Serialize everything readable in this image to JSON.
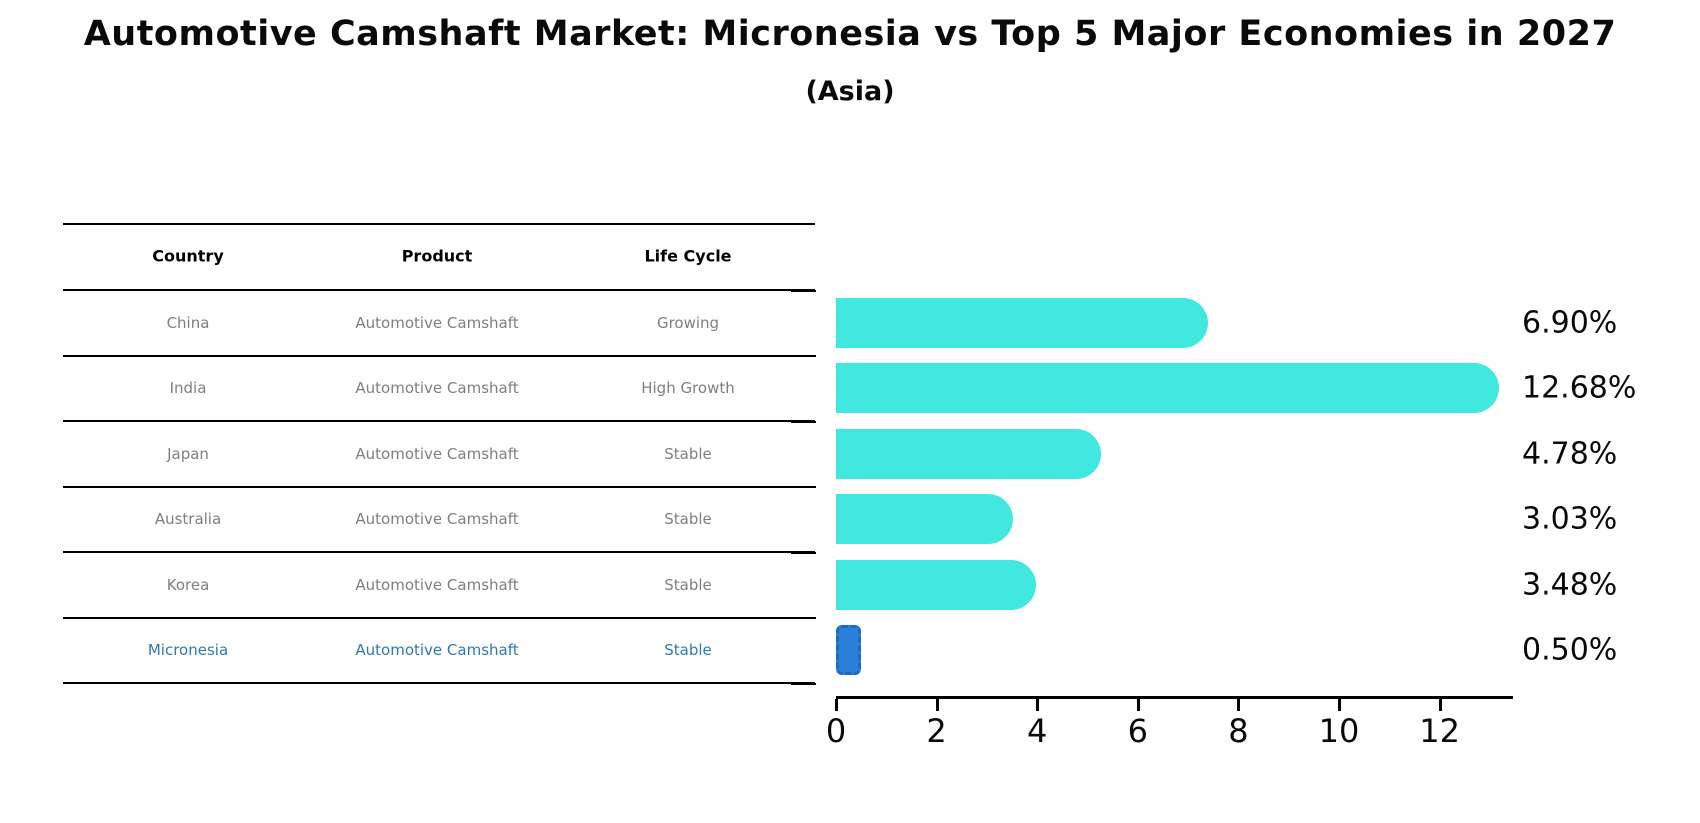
{
  "title": "Automotive Camshaft Market: Micronesia vs Top 5 Major Economies in 2027",
  "subtitle": "(Asia)",
  "table": {
    "headers": [
      "Country",
      "Product",
      "Life Cycle"
    ],
    "rows": [
      {
        "country": "China",
        "product": "Automotive Camshaft",
        "life_cycle": "Growing",
        "highlight": false
      },
      {
        "country": "India",
        "product": "Automotive Camshaft",
        "life_cycle": "High Growth",
        "highlight": false
      },
      {
        "country": "Japan",
        "product": "Automotive Camshaft",
        "life_cycle": "Stable",
        "highlight": false
      },
      {
        "country": "Australia",
        "product": "Automotive Camshaft",
        "life_cycle": "Stable",
        "highlight": false
      },
      {
        "country": "Korea",
        "product": "Automotive Camshaft",
        "life_cycle": "Stable",
        "highlight": false
      },
      {
        "country": "Micronesia",
        "product": "Automotive Camshaft",
        "life_cycle": "Stable",
        "highlight": true
      }
    ]
  },
  "chart_data": {
    "type": "bar",
    "orientation": "horizontal",
    "title": "Automotive Camshaft Market: Micronesia vs Top 5 Major Economies in 2027",
    "subtitle": "(Asia)",
    "categories": [
      "China",
      "India",
      "Japan",
      "Australia",
      "Korea",
      "Micronesia"
    ],
    "values": [
      6.9,
      12.68,
      4.78,
      3.03,
      3.48,
      0.5
    ],
    "bar_labels": [
      "6.90%",
      "12.68%",
      "4.78%",
      "3.03%",
      "3.48%",
      "0.50%"
    ],
    "xticks": [
      0,
      2,
      4,
      6,
      8,
      10,
      12
    ],
    "xlim": [
      0,
      13.4
    ],
    "xlabel": "",
    "ylabel": "",
    "grid": false,
    "legend": false,
    "highlight_category": "Micronesia"
  },
  "colors": {
    "bar_fill": "#40E8DF",
    "highlight_fill": "#2A7FD8",
    "highlight_border": "#1B6AC6",
    "link_text": "#2D78B8",
    "row_text": "#7F7F7F",
    "header_text": "#000000",
    "axis": "#000000",
    "background": "#FFFFFF"
  }
}
